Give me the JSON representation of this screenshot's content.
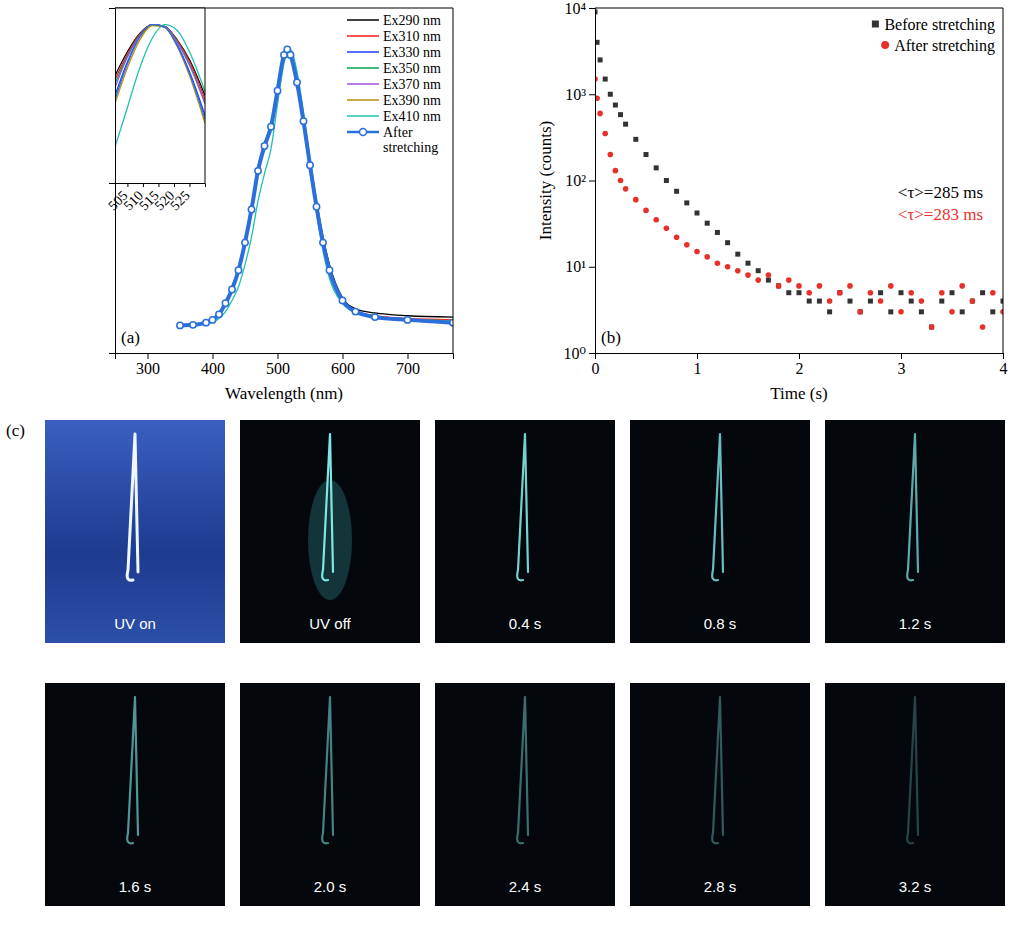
{
  "chart_data": [
    {
      "type": "line",
      "panel_label": "(a)",
      "xlabel": "Wavelength (nm)",
      "x": [
        350,
        370,
        390,
        400,
        410,
        420,
        430,
        440,
        450,
        460,
        470,
        480,
        490,
        500,
        510,
        515,
        520,
        530,
        540,
        550,
        560,
        570,
        580,
        600,
        620,
        650,
        700,
        770
      ],
      "xlim": [
        250,
        770
      ],
      "xticks": [
        300,
        400,
        500,
        600,
        700
      ],
      "ylim": [
        -0.1,
        1.15
      ],
      "tick_labels": "x",
      "legend": "upper right",
      "series": [
        {
          "name": "Ex290 nm",
          "color": "#000000",
          "values": [
            0,
            0.003,
            0.012,
            0.022,
            0.043,
            0.085,
            0.14,
            0.21,
            0.31,
            0.43,
            0.57,
            0.66,
            0.73,
            0.86,
            0.985,
            1.0,
            0.985,
            0.9,
            0.76,
            0.6,
            0.45,
            0.32,
            0.22,
            0.1,
            0.06,
            0.045,
            0.035,
            0.03
          ]
        },
        {
          "name": "Ex310 nm",
          "color": "#ff1a1a",
          "values": [
            0,
            0.003,
            0.011,
            0.021,
            0.042,
            0.083,
            0.135,
            0.205,
            0.305,
            0.425,
            0.565,
            0.655,
            0.725,
            0.855,
            0.983,
            1.0,
            0.983,
            0.89,
            0.75,
            0.59,
            0.44,
            0.31,
            0.21,
            0.095,
            0.055,
            0.035,
            0.025,
            0.02
          ]
        },
        {
          "name": "Ex330 nm",
          "color": "#1f3fff",
          "values": [
            0,
            0.002,
            0.01,
            0.02,
            0.04,
            0.08,
            0.13,
            0.2,
            0.3,
            0.42,
            0.56,
            0.65,
            0.72,
            0.85,
            0.98,
            1.0,
            0.978,
            0.875,
            0.735,
            0.575,
            0.425,
            0.295,
            0.195,
            0.088,
            0.05,
            0.03,
            0.02,
            0.015
          ]
        },
        {
          "name": "Ex350 nm",
          "color": "#00a550",
          "values": [
            0,
            0.002,
            0.011,
            0.021,
            0.041,
            0.082,
            0.133,
            0.203,
            0.303,
            0.423,
            0.563,
            0.653,
            0.723,
            0.853,
            0.982,
            1.0,
            0.982,
            0.885,
            0.745,
            0.585,
            0.435,
            0.305,
            0.205,
            0.092,
            0.052,
            0.032,
            0.022,
            0.017
          ]
        },
        {
          "name": "Ex370 nm",
          "color": "#a050d8",
          "values": [
            0,
            0.002,
            0.011,
            0.021,
            0.041,
            0.082,
            0.133,
            0.203,
            0.303,
            0.423,
            0.562,
            0.652,
            0.722,
            0.852,
            0.982,
            1.0,
            0.981,
            0.884,
            0.744,
            0.584,
            0.434,
            0.304,
            0.204,
            0.091,
            0.051,
            0.031,
            0.021,
            0.016
          ]
        },
        {
          "name": "Ex390 nm",
          "color": "#b8900a",
          "values": [
            0,
            0.002,
            0.01,
            0.02,
            0.04,
            0.08,
            0.13,
            0.2,
            0.3,
            0.42,
            0.555,
            0.645,
            0.715,
            0.845,
            0.978,
            1.0,
            0.98,
            0.89,
            0.76,
            0.6,
            0.45,
            0.315,
            0.21,
            0.095,
            0.052,
            0.032,
            0.022,
            0.017
          ]
        },
        {
          "name": "Ex410 nm",
          "color": "#20c0b0",
          "values": [
            0,
            0.001,
            0.006,
            0.012,
            0.025,
            0.05,
            0.09,
            0.14,
            0.22,
            0.32,
            0.45,
            0.55,
            0.64,
            0.8,
            0.95,
            0.99,
            1.0,
            0.92,
            0.77,
            0.58,
            0.41,
            0.27,
            0.17,
            0.08,
            0.045,
            0.03,
            0.02,
            0.015
          ]
        },
        {
          "name": "After stretching",
          "color": "#2a6fdb",
          "marker": "circle",
          "values": [
            0,
            0.002,
            0.01,
            0.02,
            0.04,
            0.08,
            0.13,
            0.2,
            0.3,
            0.42,
            0.56,
            0.65,
            0.72,
            0.85,
            0.98,
            1.0,
            0.98,
            0.88,
            0.74,
            0.58,
            0.43,
            0.3,
            0.2,
            0.09,
            0.05,
            0.03,
            0.02,
            0.01
          ]
        }
      ]
    },
    {
      "type": "line",
      "x": [
        501,
        505,
        509,
        513,
        517,
        521,
        525,
        530
      ],
      "xlim": [
        501,
        530
      ],
      "xticks": [
        505,
        510,
        515,
        520,
        525
      ],
      "ylim": [
        0.8,
        1.02
      ],
      "tick_labels": "x",
      "series": [
        {
          "color": "#000000",
          "values": [
            0.935,
            0.965,
            0.988,
            0.999,
            0.997,
            0.98,
            0.955,
            0.91
          ]
        },
        {
          "color": "#ff1a1a",
          "values": [
            0.93,
            0.962,
            0.987,
            0.999,
            0.997,
            0.979,
            0.953,
            0.905
          ]
        },
        {
          "color": "#1f3fff",
          "values": [
            0.91,
            0.952,
            0.984,
            0.999,
            0.996,
            0.974,
            0.94,
            0.885
          ]
        },
        {
          "color": "#00a550",
          "values": [
            0.925,
            0.96,
            0.986,
            0.999,
            0.997,
            0.978,
            0.95,
            0.9
          ]
        },
        {
          "color": "#a050d8",
          "values": [
            0.92,
            0.958,
            0.985,
            0.999,
            0.997,
            0.977,
            0.948,
            0.9
          ]
        },
        {
          "color": "#b8900a",
          "values": [
            0.9,
            0.945,
            0.98,
            0.998,
            0.996,
            0.972,
            0.935,
            0.875
          ]
        },
        {
          "color": "#20c0b0",
          "values": [
            0.845,
            0.895,
            0.945,
            0.982,
            0.999,
            0.992,
            0.965,
            0.915
          ]
        },
        {
          "color": "#2a6fdb",
          "values": [
            0.905,
            0.95,
            0.984,
            0.999,
            0.996,
            0.973,
            0.938,
            0.88
          ]
        }
      ]
    },
    {
      "type": "scatter",
      "panel_label": "(b)",
      "xlabel": "Time (s)",
      "ylabel": "Intensity (counts)",
      "x": [
        0,
        0.02,
        0.05,
        0.1,
        0.15,
        0.2,
        0.25,
        0.3,
        0.4,
        0.5,
        0.6,
        0.7,
        0.8,
        0.9,
        1.0,
        1.1,
        1.2,
        1.3,
        1.4,
        1.5,
        1.6,
        1.7,
        1.8,
        1.9,
        2.0,
        2.1,
        2.2,
        2.3,
        2.4,
        2.5,
        2.6,
        2.7,
        2.8,
        2.9,
        3.0,
        3.1,
        3.2,
        3.3,
        3.4,
        3.5,
        3.6,
        3.7,
        3.8,
        3.9,
        4.0
      ],
      "xlim": [
        0,
        4
      ],
      "xticks": [
        0,
        1,
        2,
        3,
        4
      ],
      "log": "y",
      "ylim": [
        1,
        10000
      ],
      "yticks": [
        {
          "value": 1,
          "label": "10⁰"
        },
        {
          "value": 10,
          "label": "10¹"
        },
        {
          "value": 100,
          "label": "10²"
        },
        {
          "value": 1000,
          "label": "10³"
        },
        {
          "value": 10000,
          "label": "10⁴"
        }
      ],
      "legend": "upper right",
      "series": [
        {
          "name": "Before stretching",
          "color": "#333333",
          "marker": "square",
          "values": [
            9000,
            4000,
            2500,
            1500,
            1000,
            750,
            580,
            450,
            300,
            200,
            140,
            100,
            75,
            55,
            42,
            32,
            25,
            19,
            14,
            11,
            9,
            7,
            6,
            5,
            5,
            4,
            4,
            3,
            5,
            4,
            3,
            4,
            5,
            3,
            5,
            4,
            3,
            2,
            4,
            5,
            3,
            4,
            5,
            3,
            4
          ]
        },
        {
          "name": "After stretching",
          "color": "#e8302a",
          "marker": "circle",
          "values": [
            1500,
            900,
            600,
            350,
            200,
            130,
            100,
            80,
            60,
            45,
            35,
            28,
            22,
            18,
            15,
            13,
            11,
            10,
            9,
            8,
            7,
            8,
            6,
            7,
            6,
            5,
            6,
            4,
            5,
            6,
            3,
            5,
            4,
            6,
            3,
            5,
            4,
            2,
            5,
            3,
            6,
            4,
            2,
            5,
            3
          ]
        }
      ],
      "annotations": [
        {
          "text": "<τ>=285 ms",
          "color": "#000000"
        },
        {
          "text": "<τ>=283 ms",
          "color": "#e8302a"
        }
      ]
    }
  ],
  "photos": {
    "panel_label": "(c)",
    "frames": [
      "UV on",
      "UV off",
      "0.4 s",
      "0.8 s",
      "1.2 s",
      "1.6 s",
      "2.0 s",
      "2.4 s",
      "2.8 s",
      "3.2 s"
    ]
  }
}
